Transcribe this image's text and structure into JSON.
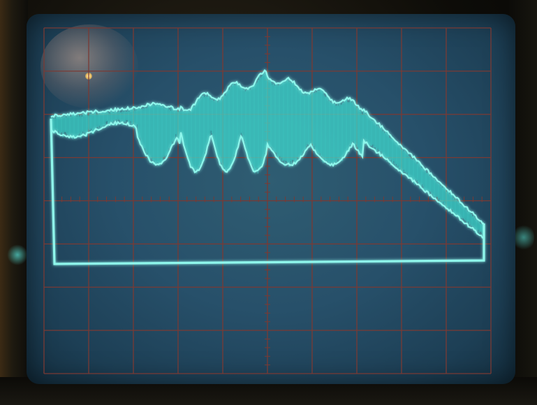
{
  "scene": {
    "subject": "oscilloscope-screen",
    "colors": {
      "screen": "#2a5670",
      "trace": "#8ff7ec",
      "trace_glow": "#3fe2d6",
      "graticule": "#7a3a34",
      "bezel": "#0d0c09"
    },
    "graticule": {
      "major_divisions_x": 10,
      "major_divisions_y": 8
    }
  }
}
